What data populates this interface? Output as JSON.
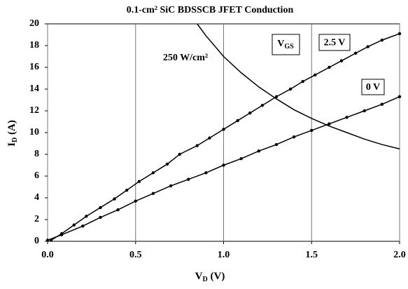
{
  "chart_data": {
    "type": "line",
    "title": "0.1-cm² SiC BDSSCB JFET Conduction",
    "x_label": {
      "main": "V",
      "sub": "D",
      "unit": " (V)"
    },
    "y_label": {
      "main": "I",
      "sub": "D",
      "unit": " (A)"
    },
    "legend_title": {
      "main": "V",
      "sub": "GS"
    },
    "xlim": [
      0,
      2
    ],
    "ylim": [
      0,
      20
    ],
    "xticks": [
      {
        "value": 0,
        "label": "0.0"
      },
      {
        "value": 0.5,
        "label": "0.5"
      },
      {
        "value": 1,
        "label": "1.0"
      },
      {
        "value": 1.5,
        "label": "1.5"
      },
      {
        "value": 2,
        "label": "2.0"
      }
    ],
    "yticks": [
      0,
      2,
      4,
      6,
      8,
      10,
      12,
      14,
      16,
      18,
      20
    ],
    "grid": "x",
    "series": [
      {
        "name": "2.5 V",
        "color": "#000000",
        "markers": true,
        "x": [
          0.02,
          0.08,
          0.15,
          0.22,
          0.3,
          0.38,
          0.45,
          0.52,
          0.6,
          0.68,
          0.75,
          0.85,
          0.92,
          1.0,
          1.08,
          1.15,
          1.22,
          1.3,
          1.38,
          1.45,
          1.52,
          1.6,
          1.67,
          1.75,
          1.82,
          1.9,
          2.0
        ],
        "values": [
          0.1,
          0.7,
          1.5,
          2.3,
          3.1,
          3.9,
          4.7,
          5.5,
          6.3,
          7.1,
          8.0,
          8.8,
          9.5,
          10.3,
          11.1,
          11.8,
          12.5,
          13.3,
          14.0,
          14.7,
          15.3,
          16.0,
          16.6,
          17.3,
          17.9,
          18.5,
          19.1
        ]
      },
      {
        "name": "0 V",
        "color": "#000000",
        "markers": true,
        "x": [
          0.0,
          0.08,
          0.2,
          0.3,
          0.4,
          0.5,
          0.6,
          0.7,
          0.8,
          0.9,
          1.0,
          1.1,
          1.2,
          1.3,
          1.4,
          1.5,
          1.6,
          1.7,
          1.8,
          1.9,
          2.0
        ],
        "values": [
          0.1,
          0.6,
          1.4,
          2.2,
          2.9,
          3.7,
          4.4,
          5.1,
          5.7,
          6.3,
          7.0,
          7.6,
          8.3,
          8.9,
          9.6,
          10.2,
          10.8,
          11.4,
          12.0,
          12.6,
          13.3
        ]
      },
      {
        "name": "250 W/cm²",
        "color": "#000000",
        "markers": false,
        "x": [
          0.85,
          0.9,
          1.0,
          1.1,
          1.2,
          1.3,
          1.4,
          1.5,
          1.6,
          1.7,
          1.8,
          1.9,
          2.0
        ],
        "values": [
          20,
          18.9,
          17,
          15.5,
          14.2,
          13.1,
          12.1,
          11.3,
          10.6,
          10.0,
          9.4,
          8.9,
          8.5
        ]
      }
    ]
  }
}
